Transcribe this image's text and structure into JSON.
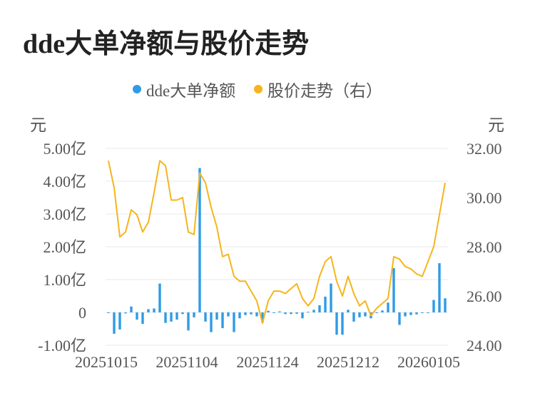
{
  "title": "dde大单净额与股价走势",
  "legend": {
    "items": [
      {
        "label": "dde大单净额",
        "color": "#2f9be6"
      },
      {
        "label": "股价走势（右）",
        "color": "#f5b51c"
      }
    ]
  },
  "units": {
    "left": "元",
    "right": "元"
  },
  "chart_data": {
    "type": "bar+line",
    "x_tick_labels": [
      "20251015",
      "20251104",
      "20251124",
      "20251212",
      "20260105"
    ],
    "y_left": {
      "ticks": [
        "5.00亿",
        "4.00亿",
        "3.00亿",
        "2.00亿",
        "1.00亿",
        "0",
        "-1.00亿"
      ],
      "range": [
        -1.0,
        5.0
      ],
      "unit": "亿元"
    },
    "y_right": {
      "ticks": [
        "32.00",
        "30.00",
        "28.00",
        "26.00",
        "24.00"
      ],
      "range": [
        24.0,
        32.0
      ]
    },
    "bar_color": "#2f9be6",
    "line_color": "#f5b51c",
    "grid": true,
    "series": [
      {
        "name": "dde大单净额",
        "type": "bar",
        "values": [
          -0.02,
          -0.65,
          -0.52,
          -0.03,
          0.18,
          -0.22,
          -0.35,
          0.1,
          0.12,
          0.88,
          -0.32,
          -0.28,
          -0.22,
          -0.05,
          -0.55,
          -0.15,
          4.4,
          -0.28,
          -0.6,
          -0.22,
          -0.48,
          -0.12,
          -0.6,
          -0.18,
          -0.08,
          -0.06,
          -0.12,
          -0.3,
          0.05,
          -0.02,
          0.03,
          -0.05,
          -0.05,
          -0.04,
          -0.18,
          0.02,
          0.08,
          0.22,
          0.48,
          0.88,
          -0.68,
          -0.68,
          0.08,
          -0.28,
          -0.15,
          -0.12,
          -0.18,
          -0.02,
          0.06,
          0.3,
          1.35,
          -0.38,
          -0.12,
          -0.08,
          -0.06,
          -0.02,
          -0.01,
          0.38,
          1.5,
          0.43
        ]
      },
      {
        "name": "股价走势（右）",
        "type": "line",
        "values": [
          31.5,
          30.4,
          28.4,
          28.6,
          29.5,
          29.3,
          28.6,
          29.0,
          30.2,
          31.5,
          31.3,
          29.9,
          29.9,
          30.0,
          28.6,
          28.5,
          31.0,
          30.6,
          29.6,
          28.8,
          27.6,
          27.7,
          26.8,
          26.6,
          26.6,
          26.2,
          25.8,
          24.9,
          25.8,
          26.2,
          26.2,
          26.1,
          26.3,
          26.5,
          25.9,
          25.6,
          25.9,
          26.8,
          27.4,
          27.6,
          26.6,
          26.0,
          26.8,
          26.1,
          25.6,
          25.8,
          25.2,
          25.5,
          25.7,
          25.9,
          27.6,
          27.5,
          27.2,
          27.1,
          26.9,
          26.8,
          27.4,
          28.0,
          29.3,
          30.6
        ]
      }
    ]
  }
}
